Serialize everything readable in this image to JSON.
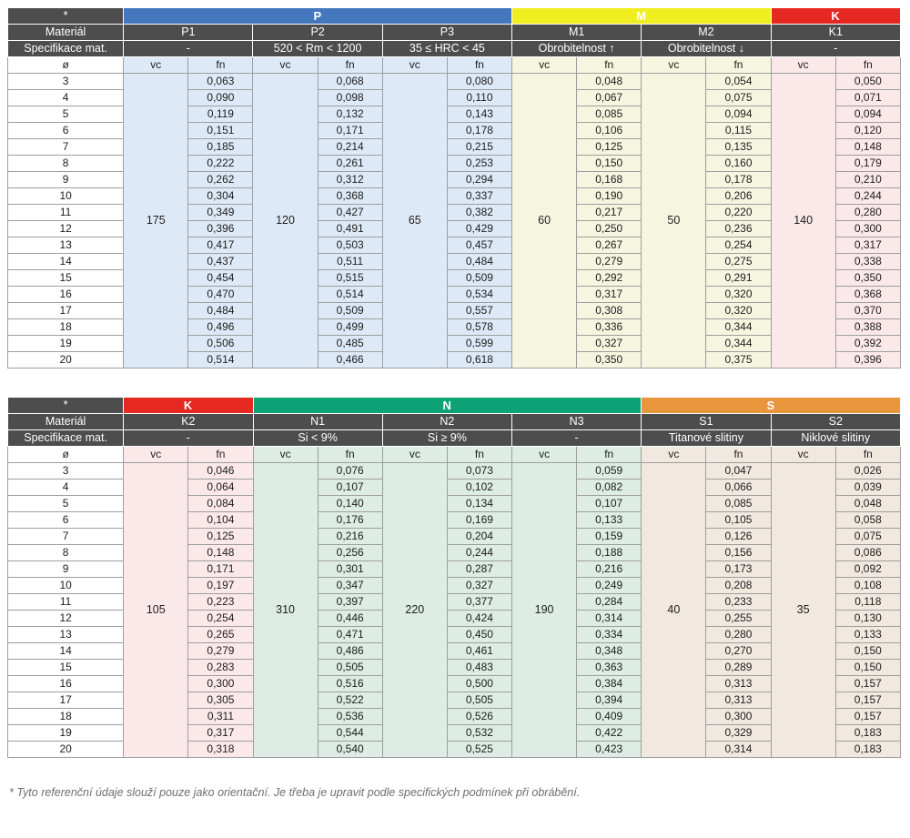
{
  "labels": {
    "asterisk": "*",
    "material_row": "Materiál",
    "spec_row": "Specifikace mat.",
    "diameter_symbol": "ø",
    "vc": "vc",
    "fn": "fn"
  },
  "colors": {
    "header_dark": "#4d4d4d",
    "group_P": "#4577be",
    "group_M": "#f0ee20",
    "group_K": "#e52822",
    "group_N": "#0da377",
    "group_S": "#e9953b",
    "tint_P": "#dde9f6",
    "tint_M": "#f5f6df",
    "tint_K": "#fbe9e9",
    "tint_N": "#ddece4",
    "tint_S": "#f1e8e0"
  },
  "diameters": [
    "3",
    "4",
    "5",
    "6",
    "7",
    "8",
    "9",
    "10",
    "11",
    "12",
    "13",
    "14",
    "15",
    "16",
    "17",
    "18",
    "19",
    "20"
  ],
  "tables": [
    {
      "groups": [
        {
          "name": "P",
          "color": "#4577be",
          "span": 3
        },
        {
          "name": "M",
          "color": "#f0ee20",
          "span": 2
        },
        {
          "name": "K",
          "color": "#e52822",
          "span": 1
        }
      ],
      "columns": [
        {
          "id": "P1",
          "spec": "-",
          "tint": "#dde9f6",
          "vc": "175",
          "fn": [
            "0,063",
            "0,090",
            "0,119",
            "0,151",
            "0,185",
            "0,222",
            "0,262",
            "0,304",
            "0,349",
            "0,396",
            "0,417",
            "0,437",
            "0,454",
            "0,470",
            "0,484",
            "0,496",
            "0,506",
            "0,514"
          ]
        },
        {
          "id": "P2",
          "spec": "520 < Rm < 1200",
          "tint": "#dde9f6",
          "vc": "120",
          "fn": [
            "0,068",
            "0,098",
            "0,132",
            "0,171",
            "0,214",
            "0,261",
            "0,312",
            "0,368",
            "0,427",
            "0,491",
            "0,503",
            "0,511",
            "0,515",
            "0,514",
            "0,509",
            "0,499",
            "0,485",
            "0,466"
          ]
        },
        {
          "id": "P3",
          "spec": "35 ≤ HRC < 45",
          "tint": "#dde9f6",
          "vc": "65",
          "fn": [
            "0,080",
            "0,110",
            "0,143",
            "0,178",
            "0,215",
            "0,253",
            "0,294",
            "0,337",
            "0,382",
            "0,429",
            "0,457",
            "0,484",
            "0,509",
            "0,534",
            "0,557",
            "0,578",
            "0,599",
            "0,618"
          ]
        },
        {
          "id": "M1",
          "spec": "Obrobitelnost ↑",
          "tint": "#f5f6df",
          "vc": "60",
          "fn": [
            "0,048",
            "0,067",
            "0,085",
            "0,106",
            "0,125",
            "0,150",
            "0,168",
            "0,190",
            "0,217",
            "0,250",
            "0,267",
            "0,279",
            "0,292",
            "0,317",
            "0,308",
            "0,336",
            "0,327",
            "0,350"
          ]
        },
        {
          "id": "M2",
          "spec": "Obrobitelnost ↓",
          "tint": "#f5f6df",
          "vc": "50",
          "fn": [
            "0,054",
            "0,075",
            "0,094",
            "0,115",
            "0,135",
            "0,160",
            "0,178",
            "0,206",
            "0,220",
            "0,236",
            "0,254",
            "0,275",
            "0,291",
            "0,320",
            "0,320",
            "0,344",
            "0,344",
            "0,375"
          ]
        },
        {
          "id": "K1",
          "spec": "-",
          "tint": "#fbe9e9",
          "vc": "140",
          "fn": [
            "0,050",
            "0,071",
            "0,094",
            "0,120",
            "0,148",
            "0,179",
            "0,210",
            "0,244",
            "0,280",
            "0,300",
            "0,317",
            "0,338",
            "0,350",
            "0,368",
            "0,370",
            "0,388",
            "0,392",
            "0,396"
          ]
        }
      ]
    },
    {
      "groups": [
        {
          "name": "K",
          "color": "#e52822",
          "span": 1
        },
        {
          "name": "N",
          "color": "#0da377",
          "span": 3
        },
        {
          "name": "S",
          "color": "#e9953b",
          "span": 2
        }
      ],
      "columns": [
        {
          "id": "K2",
          "spec": "-",
          "tint": "#fbe9e9",
          "vc": "105",
          "fn": [
            "0,046",
            "0,064",
            "0,084",
            "0,104",
            "0,125",
            "0,148",
            "0,171",
            "0,197",
            "0,223",
            "0,254",
            "0,265",
            "0,279",
            "0,283",
            "0,300",
            "0,305",
            "0,311",
            "0,317",
            "0,318"
          ]
        },
        {
          "id": "N1",
          "spec": "Si < 9%",
          "tint": "#ddece4",
          "vc": "310",
          "fn": [
            "0,076",
            "0,107",
            "0,140",
            "0,176",
            "0,216",
            "0,256",
            "0,301",
            "0,347",
            "0,397",
            "0,446",
            "0,471",
            "0,486",
            "0,505",
            "0,516",
            "0,522",
            "0,536",
            "0,544",
            "0,540"
          ]
        },
        {
          "id": "N2",
          "spec": "Si ≥ 9%",
          "tint": "#ddece4",
          "vc": "220",
          "fn": [
            "0,073",
            "0,102",
            "0,134",
            "0,169",
            "0,204",
            "0,244",
            "0,287",
            "0,327",
            "0,377",
            "0,424",
            "0,450",
            "0,461",
            "0,483",
            "0,500",
            "0,505",
            "0,526",
            "0,532",
            "0,525"
          ]
        },
        {
          "id": "N3",
          "spec": "-",
          "tint": "#ddece4",
          "vc": "190",
          "fn": [
            "0,059",
            "0,082",
            "0,107",
            "0,133",
            "0,159",
            "0,188",
            "0,216",
            "0,249",
            "0,284",
            "0,314",
            "0,334",
            "0,348",
            "0,363",
            "0,384",
            "0,394",
            "0,409",
            "0,422",
            "0,423"
          ]
        },
        {
          "id": "S1",
          "spec": "Titanové slitiny",
          "tint": "#f1e8e0",
          "vc": "40",
          "fn": [
            "0,047",
            "0,066",
            "0,085",
            "0,105",
            "0,126",
            "0,156",
            "0,173",
            "0,208",
            "0,233",
            "0,255",
            "0,280",
            "0,270",
            "0,289",
            "0,313",
            "0,313",
            "0,300",
            "0,329",
            "0,314"
          ]
        },
        {
          "id": "S2",
          "spec": "Niklové slitiny",
          "tint": "#f1e8e0",
          "vc": "35",
          "fn": [
            "0,026",
            "0,039",
            "0,048",
            "0,058",
            "0,075",
            "0,086",
            "0,092",
            "0,108",
            "0,118",
            "0,130",
            "0,133",
            "0,150",
            "0,150",
            "0,157",
            "0,157",
            "0,157",
            "0,183",
            "0,183"
          ]
        }
      ]
    }
  ],
  "page": {
    "footnote": "* Tyto referenční údaje slouží pouze jako orientační. Je třeba je upravit podle specifických podmínek při obrábění."
  }
}
